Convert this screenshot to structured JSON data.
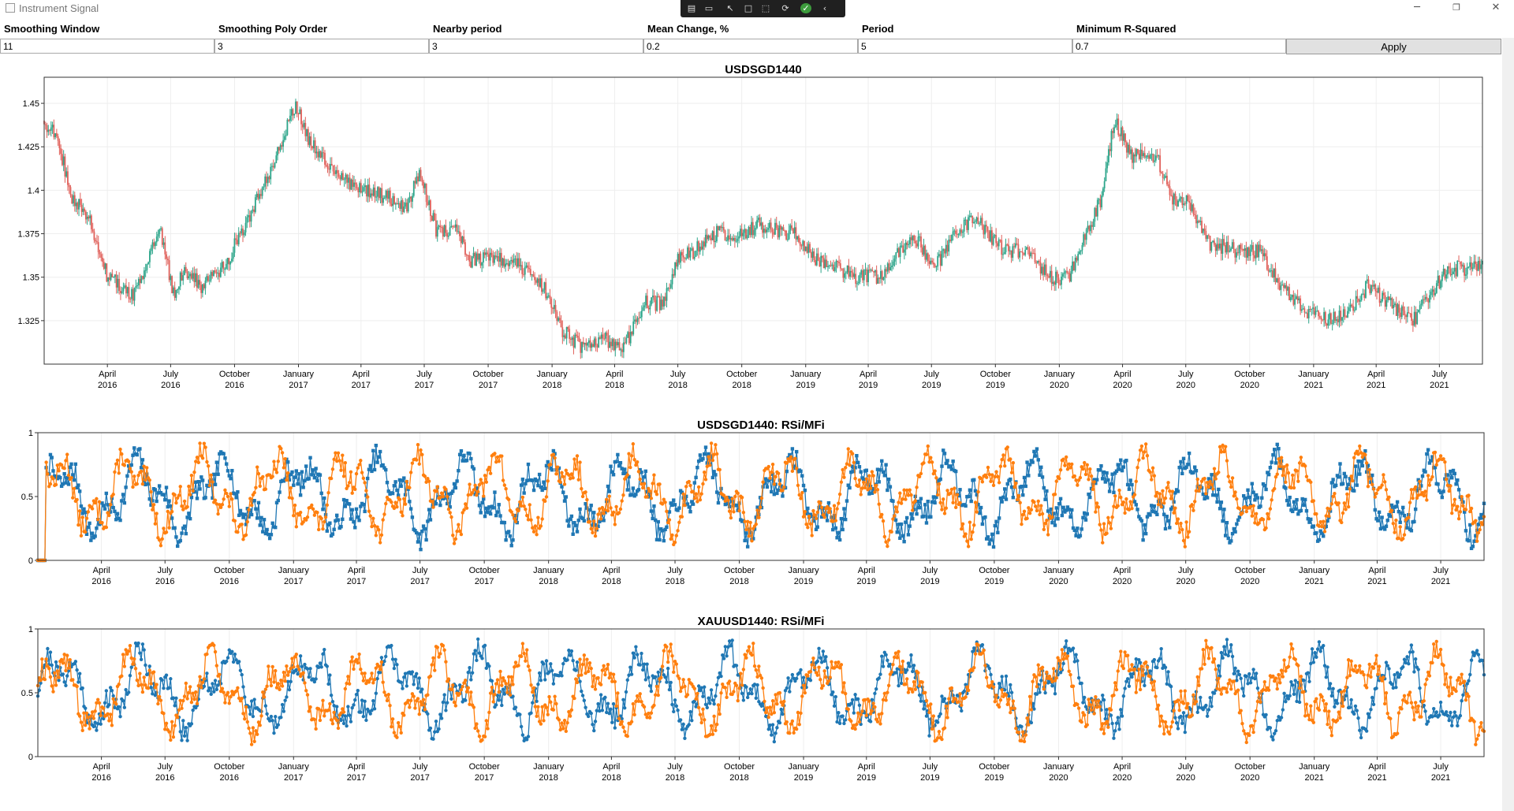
{
  "window": {
    "title": "Instrument Signal",
    "minimize_glyph": "─",
    "restore_glyph": "❐",
    "close_glyph": "✕"
  },
  "debug_toolbar": {
    "icons": [
      "live-tree-icon",
      "video-icon",
      "select-element-icon",
      "display-layout-icon",
      "track-focus-icon",
      "hot-reload-icon",
      "check-icon",
      "collapse-icon"
    ],
    "glyphs": [
      "▤",
      "▭",
      "↖",
      "□",
      "⬚",
      "⟳",
      "✓",
      "‹"
    ]
  },
  "params": [
    {
      "label": "Smoothing Window",
      "value": "11"
    },
    {
      "label": "Smoothing Poly Order",
      "value": "3"
    },
    {
      "label": "Nearby period",
      "value": "3"
    },
    {
      "label": "Mean Change, %",
      "value": "0.2"
    },
    {
      "label": "Period",
      "value": "5"
    },
    {
      "label": "Minimum R-Squared",
      "value": "0.7"
    }
  ],
  "apply_label": "Apply",
  "colors": {
    "up": "#2ca58a",
    "down": "#e0605a",
    "series_blue": "#1f77b4",
    "series_orange": "#ff7f0e",
    "grid": "#eeeeee"
  },
  "x_ticks": [
    [
      "April",
      "2016"
    ],
    [
      "July",
      "2016"
    ],
    [
      "October",
      "2016"
    ],
    [
      "January",
      "2017"
    ],
    [
      "April",
      "2017"
    ],
    [
      "July",
      "2017"
    ],
    [
      "October",
      "2017"
    ],
    [
      "January",
      "2018"
    ],
    [
      "April",
      "2018"
    ],
    [
      "July",
      "2018"
    ],
    [
      "October",
      "2018"
    ],
    [
      "January",
      "2019"
    ],
    [
      "April",
      "2019"
    ],
    [
      "July",
      "2019"
    ],
    [
      "October",
      "2019"
    ],
    [
      "January",
      "2020"
    ],
    [
      "April",
      "2020"
    ],
    [
      "July",
      "2020"
    ],
    [
      "October",
      "2020"
    ],
    [
      "January",
      "2021"
    ],
    [
      "April",
      "2021"
    ],
    [
      "July",
      "2021"
    ]
  ],
  "chart_data": [
    {
      "type": "candlestick",
      "title": "USDSGD1440",
      "x_range": [
        "2016-01",
        "2021-09"
      ],
      "ylim": [
        1.3,
        1.465
      ],
      "y_ticks": [
        "1.325",
        "1.35",
        "1.375",
        "1.4",
        "1.425",
        "1.45"
      ],
      "close_anchors": [
        [
          "2016-01-01",
          1.44
        ],
        [
          "2016-01-20",
          1.43
        ],
        [
          "2016-02-10",
          1.395
        ],
        [
          "2016-03-05",
          1.385
        ],
        [
          "2016-04-01",
          1.35
        ],
        [
          "2016-05-10",
          1.34
        ],
        [
          "2016-06-15",
          1.38
        ],
        [
          "2016-07-05",
          1.34
        ],
        [
          "2016-07-20",
          1.355
        ],
        [
          "2016-08-15",
          1.345
        ],
        [
          "2016-09-15",
          1.355
        ],
        [
          "2016-10-15",
          1.38
        ],
        [
          "2016-11-15",
          1.405
        ],
        [
          "2016-12-10",
          1.43
        ],
        [
          "2016-12-28",
          1.45
        ],
        [
          "2017-01-15",
          1.43
        ],
        [
          "2017-02-10",
          1.415
        ],
        [
          "2017-03-15",
          1.405
        ],
        [
          "2017-04-10",
          1.4
        ],
        [
          "2017-05-15",
          1.395
        ],
        [
          "2017-06-05",
          1.39
        ],
        [
          "2017-06-25",
          1.41
        ],
        [
          "2017-07-20",
          1.375
        ],
        [
          "2017-08-15",
          1.38
        ],
        [
          "2017-09-05",
          1.36
        ],
        [
          "2017-10-01",
          1.36
        ],
        [
          "2017-11-01",
          1.36
        ],
        [
          "2017-11-20",
          1.355
        ],
        [
          "2017-12-20",
          1.345
        ],
        [
          "2018-01-15",
          1.32
        ],
        [
          "2018-02-10",
          1.31
        ],
        [
          "2018-03-15",
          1.315
        ],
        [
          "2018-04-15",
          1.31
        ],
        [
          "2018-05-15",
          1.335
        ],
        [
          "2018-06-10",
          1.335
        ],
        [
          "2018-07-01",
          1.36
        ],
        [
          "2018-07-25",
          1.365
        ],
        [
          "2018-08-25",
          1.375
        ],
        [
          "2018-10-01",
          1.375
        ],
        [
          "2018-10-25",
          1.38
        ],
        [
          "2018-12-15",
          1.375
        ],
        [
          "2019-01-15",
          1.36
        ],
        [
          "2019-02-15",
          1.355
        ],
        [
          "2019-03-15",
          1.35
        ],
        [
          "2019-04-15",
          1.35
        ],
        [
          "2019-05-15",
          1.365
        ],
        [
          "2019-06-05",
          1.375
        ],
        [
          "2019-07-05",
          1.355
        ],
        [
          "2019-08-05",
          1.375
        ],
        [
          "2019-09-01",
          1.385
        ],
        [
          "2019-09-20",
          1.375
        ],
        [
          "2019-10-15",
          1.365
        ],
        [
          "2019-11-15",
          1.365
        ],
        [
          "2019-12-20",
          1.35
        ],
        [
          "2020-01-15",
          1.35
        ],
        [
          "2020-02-10",
          1.375
        ],
        [
          "2020-03-01",
          1.395
        ],
        [
          "2020-03-20",
          1.44
        ],
        [
          "2020-04-15",
          1.42
        ],
        [
          "2020-05-20",
          1.42
        ],
        [
          "2020-06-10",
          1.395
        ],
        [
          "2020-07-05",
          1.395
        ],
        [
          "2020-08-01",
          1.37
        ],
        [
          "2020-09-15",
          1.365
        ],
        [
          "2020-10-15",
          1.365
        ],
        [
          "2020-11-15",
          1.345
        ],
        [
          "2020-12-20",
          1.33
        ],
        [
          "2021-01-20",
          1.325
        ],
        [
          "2021-02-20",
          1.33
        ],
        [
          "2021-03-20",
          1.345
        ],
        [
          "2021-04-20",
          1.335
        ],
        [
          "2021-05-25",
          1.325
        ],
        [
          "2021-06-15",
          1.34
        ],
        [
          "2021-07-15",
          1.355
        ],
        [
          "2021-08-20",
          1.355
        ],
        [
          "2021-09-05",
          1.36
        ]
      ]
    },
    {
      "type": "line",
      "title": "USDSGD1440: RSi/MFi",
      "ylim": [
        0,
        1
      ],
      "y_ticks": [
        "0",
        "0.5",
        "1"
      ],
      "series": [
        {
          "color": "#1f77b4",
          "marker": "square",
          "seed": 7,
          "period": 58,
          "level": 0.5
        },
        {
          "color": "#ff7f0e",
          "marker": "circle",
          "seed": 13,
          "period": 52,
          "level": 0.52
        }
      ]
    },
    {
      "type": "line",
      "title": "XAUUSD1440: RSi/MFi",
      "ylim": [
        0,
        1
      ],
      "y_ticks": [
        "0",
        "0.5",
        "1"
      ],
      "series": [
        {
          "color": "#1f77b4",
          "marker": "circle",
          "seed": 21,
          "period": 60,
          "level": 0.52
        },
        {
          "color": "#ff7f0e",
          "marker": "circle",
          "seed": 34,
          "period": 55,
          "level": 0.5
        }
      ]
    }
  ]
}
